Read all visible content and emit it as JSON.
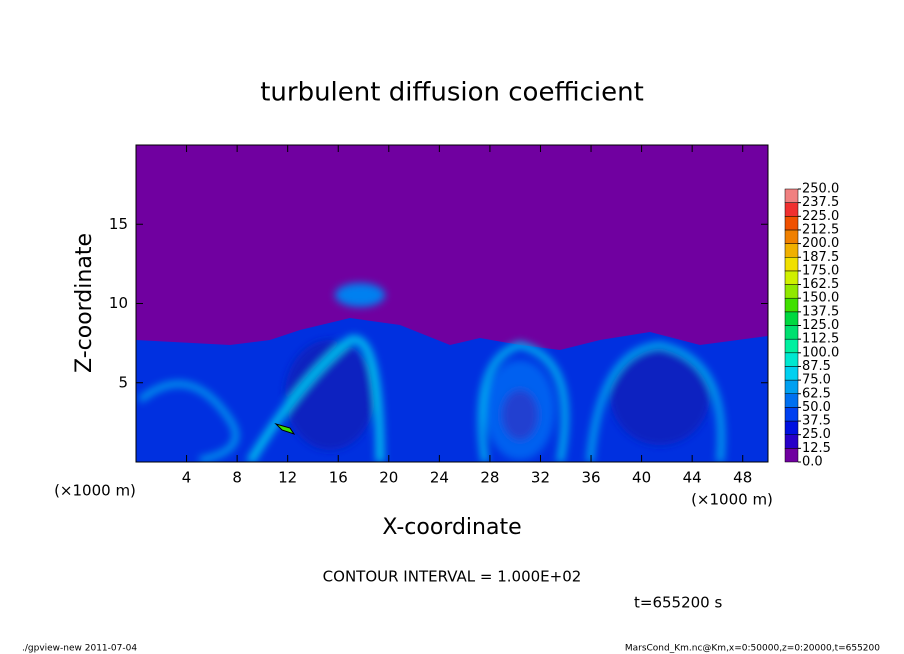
{
  "chart_data": {
    "type": "contour",
    "title": "turbulent diffusion coefficient",
    "xlabel": "X-coordinate",
    "ylabel": "Z-coordinate",
    "xunit": "(×1000 m)",
    "yunit": "(×1000 m)",
    "xlim": [
      0,
      50
    ],
    "ylim": [
      0,
      20
    ],
    "xticks": [
      4,
      8,
      12,
      16,
      20,
      24,
      28,
      32,
      36,
      40,
      44,
      48
    ],
    "yticks": [
      5,
      10,
      15
    ],
    "colorbar": {
      "lim": [
        0,
        250
      ],
      "ticks": [
        {
          "value": 0,
          "label": "0.0"
        },
        {
          "value": 12.5,
          "label": "12.5"
        },
        {
          "value": 25,
          "label": "25.0"
        },
        {
          "value": 37.5,
          "label": "37.5"
        },
        {
          "value": 50,
          "label": "50.0"
        },
        {
          "value": 62.5,
          "label": "62.5"
        },
        {
          "value": 75,
          "label": "75.0"
        },
        {
          "value": 87.5,
          "label": "87.5"
        },
        {
          "value": 100,
          "label": "100.0"
        },
        {
          "value": 112.5,
          "label": "112.5"
        },
        {
          "value": 125,
          "label": "125.0"
        },
        {
          "value": 137.5,
          "label": "137.5"
        },
        {
          "value": 150,
          "label": "150.0"
        },
        {
          "value": 162.5,
          "label": "162.5"
        },
        {
          "value": 175,
          "label": "175.0"
        },
        {
          "value": 187.5,
          "label": "187.5"
        },
        {
          "value": 200,
          "label": "200.0"
        },
        {
          "value": 212.5,
          "label": "212.5"
        },
        {
          "value": 225,
          "label": "225.0"
        },
        {
          "value": 237.5,
          "label": "237.5"
        },
        {
          "value": 250,
          "label": "250.0"
        }
      ],
      "colors": [
        "#7000a0",
        "#2800c8",
        "#0010e0",
        "#0040f0",
        "#0070f0",
        "#00a0f0",
        "#00d0f0",
        "#00e8d0",
        "#00f0a0",
        "#00e070",
        "#00d840",
        "#40e000",
        "#90e800",
        "#d0f000",
        "#f0e000",
        "#f0b000",
        "#f08000",
        "#f05000",
        "#f03030",
        "#f08080"
      ]
    },
    "contour_interval": "CONTOUR INTERVAL = 1.000E+02",
    "time": "t=655200 s",
    "footer_left": "./gpview-new  2011-07-04",
    "footer_right": "MarsCond_Km.nc@Km,x=0:50000,z=0:20000,t=655200"
  }
}
